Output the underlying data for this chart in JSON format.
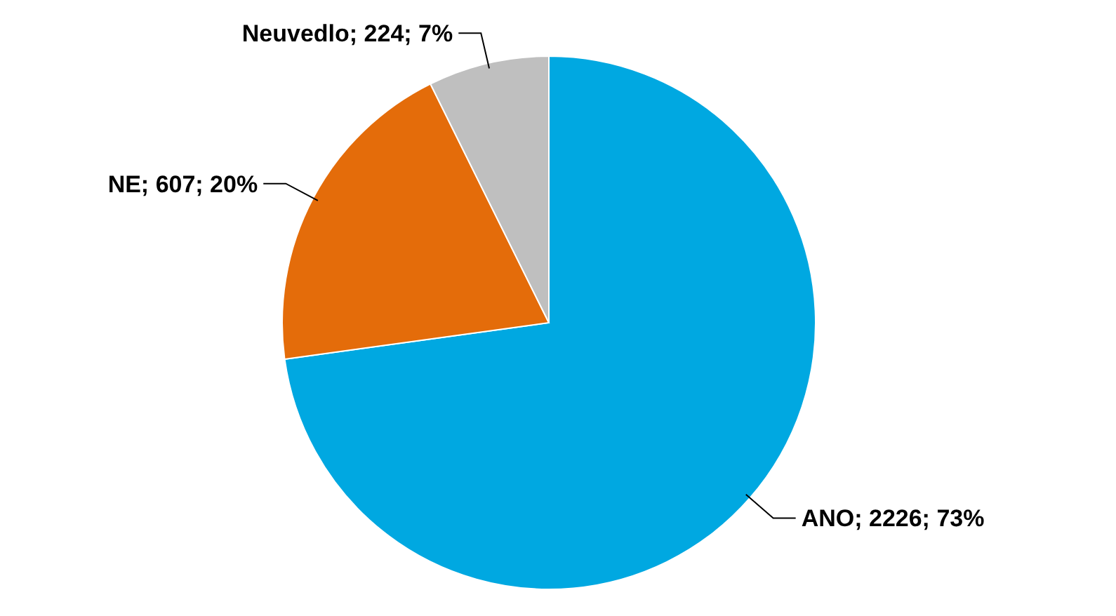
{
  "chart_data": {
    "type": "pie",
    "categories": [
      "ANO",
      "NE",
      "Neuvedlo"
    ],
    "values": [
      2226,
      607,
      224
    ],
    "colors": [
      "#00a8e1",
      "#e46c0a",
      "#bfbfbf"
    ],
    "value_labels": [
      "2226; 73%",
      "607; 20%",
      "224; 7%"
    ]
  }
}
